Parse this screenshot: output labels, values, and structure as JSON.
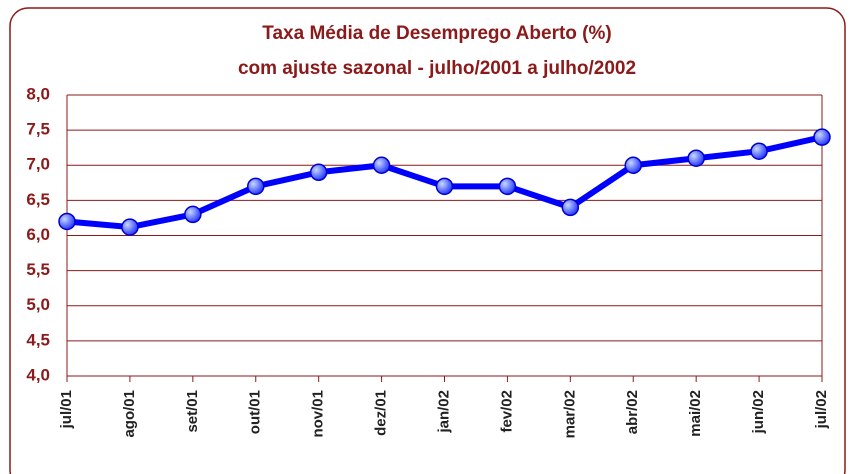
{
  "chart_data": {
    "type": "line",
    "title": "Taxa Média de Desemprego Aberto (%)",
    "subtitle": "com ajuste sazonal -  julho/2001 a julho/2002",
    "categories": [
      "jul/01",
      "ago/01",
      "set/01",
      "out/01",
      "nov/01",
      "dez/01",
      "jan/02",
      "fev/02",
      "mar/02",
      "abr/02",
      "mai/02",
      "jun/02",
      "jul/02"
    ],
    "series": [
      {
        "name": "Taxa Média de Desemprego Aberto",
        "color": "#0000ff",
        "values": [
          6.2,
          6.12,
          6.3,
          6.7,
          6.9,
          7.0,
          6.7,
          6.7,
          6.4,
          7.0,
          7.1,
          7.2,
          7.4
        ]
      }
    ],
    "ylim": [
      4,
      8
    ],
    "yticks": [
      {
        "value": 4,
        "label": "4,0"
      },
      {
        "value": 4.5,
        "label": "4,5"
      },
      {
        "value": 5,
        "label": "5,0"
      },
      {
        "value": 5.5,
        "label": "5,5"
      },
      {
        "value": 6,
        "label": "6,0"
      },
      {
        "value": 6.5,
        "label": "6,5"
      },
      {
        "value": 7,
        "label": "7,0"
      },
      {
        "value": 7.5,
        "label": "7,5"
      },
      {
        "value": 8,
        "label": "8,0"
      }
    ],
    "grid": true
  }
}
